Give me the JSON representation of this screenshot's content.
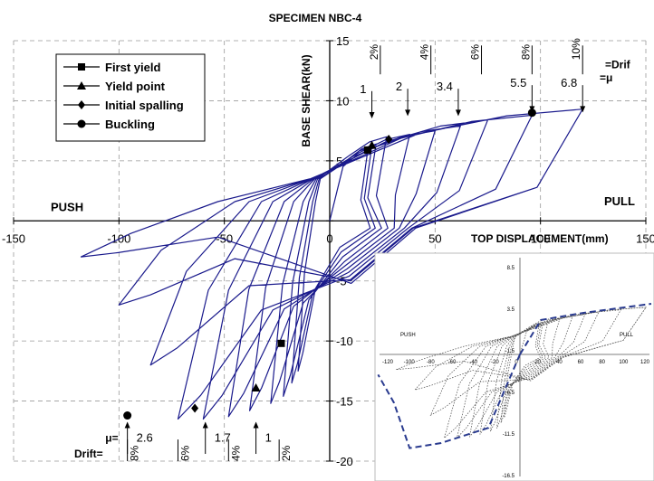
{
  "chart_data": {
    "type": "line",
    "title": "SPECIMEN NBC-4",
    "xlabel": "TOP DISPLACEMENT(mm)",
    "ylabel": "BASE SHEAR(kN)",
    "xlim": [
      -150,
      150
    ],
    "ylim": [
      -20,
      15
    ],
    "xticks": [
      -150,
      -100,
      -50,
      0,
      50,
      100,
      150
    ],
    "yticks": [
      -20,
      -15,
      -10,
      -5,
      0,
      5,
      10,
      15
    ],
    "xtick_labels": [
      "-150",
      "-100",
      "-50",
      "0",
      "50",
      "100",
      "150"
    ],
    "ytick_labels": [
      "-20",
      "-15",
      "-10",
      "-5",
      "0",
      "5",
      "10",
      "15"
    ],
    "grid": true,
    "legend_position": "top-left",
    "curve_color": "#1a1a8c",
    "side_labels": {
      "push": "PUSH",
      "pull": "PULL"
    },
    "legend": [
      {
        "label": "First yield",
        "marker": "square"
      },
      {
        "label": "Yield point",
        "marker": "triangle"
      },
      {
        "label": "Initial spalling",
        "marker": "diamond"
      },
      {
        "label": "Buckling",
        "marker": "circle"
      }
    ],
    "series": [
      {
        "name": "Hysteresis loops",
        "peaks_pos": [
          [
            18,
            5.8
          ],
          [
            20,
            6.2
          ],
          [
            22,
            6.4
          ],
          [
            27,
            7.0
          ],
          [
            38,
            7.2
          ],
          [
            50,
            7.5
          ],
          [
            62,
            7.9
          ],
          [
            75,
            8.4
          ],
          [
            96,
            8.8
          ],
          [
            120,
            9.3
          ]
        ],
        "peaks_neg": [
          [
            -15,
            -12.5
          ],
          [
            -18,
            -13.5
          ],
          [
            -22,
            -14.6
          ],
          [
            -28,
            -15.2
          ],
          [
            -38,
            -15.8
          ],
          [
            -48,
            -16.3
          ],
          [
            -60,
            -16.5
          ],
          [
            -72,
            -16.5
          ],
          [
            -85,
            -12.0
          ],
          [
            -100,
            -7.0
          ],
          [
            -118,
            -3.0
          ]
        ],
        "residual": [
          3.2,
          3.6,
          4.1,
          4.6,
          5.1,
          5.5,
          5.9,
          6.2,
          6.5,
          6.6,
          6.8
        ],
        "pinch": [
          -2.2,
          -2.6,
          -3.0,
          -3.4,
          -3.7,
          -4.0,
          -4.3,
          -4.6,
          -4.9,
          -5.0,
          -5.2
        ]
      }
    ],
    "events": {
      "first_yield": [
        {
          "x": 18,
          "y": 5.9
        },
        {
          "x": -23,
          "y": -10.2
        }
      ],
      "yield_point": [
        {
          "x": 20,
          "y": 6.3
        },
        {
          "x": -35,
          "y": -13.9
        }
      ],
      "initial_spalling": [
        {
          "x": 28,
          "y": 6.8
        },
        {
          "x": -64,
          "y": -15.6
        }
      ],
      "buckling": [
        {
          "x": 96,
          "y": 9.0
        },
        {
          "x": -96,
          "y": -16.2
        }
      ]
    },
    "ductility": {
      "marker": "=μ",
      "bottom_label": "μ=",
      "top": [
        {
          "x": 20,
          "label": "1"
        },
        {
          "x": 37,
          "label": "2"
        },
        {
          "x": 61,
          "label": "3.4"
        },
        {
          "x": 96,
          "label": "5.5"
        },
        {
          "x": 120,
          "label": "6.8"
        }
      ],
      "bottom": [
        {
          "x": -96,
          "label": "2.6"
        },
        {
          "x": -59,
          "label": "1.7"
        },
        {
          "x": -35,
          "label": "1"
        }
      ]
    },
    "drift": {
      "marker": "=Drif",
      "bottom_label": "Drift=",
      "top": [
        {
          "x": 24,
          "label": "2%"
        },
        {
          "x": 48,
          "label": "4%"
        },
        {
          "x": 72,
          "label": "6%"
        },
        {
          "x": 96,
          "label": "8%"
        },
        {
          "x": 120,
          "label": "10%"
        }
      ],
      "bottom": [
        {
          "x": -96,
          "label": "8%"
        },
        {
          "x": -72,
          "label": "6%"
        },
        {
          "x": -48,
          "label": "4%"
        },
        {
          "x": -24,
          "label": "2%"
        }
      ]
    },
    "inset": {
      "xtick_labels": [
        "-120",
        "-100",
        "-80",
        "-60",
        "-40",
        "-20",
        "0",
        "20",
        "40",
        "60",
        "80",
        "100",
        "120"
      ],
      "ytick_labels": [
        "8.5",
        "3.5",
        "-1.5",
        "-6.5",
        "-11.5",
        "-16.5"
      ],
      "push_label": "PUSH",
      "pull_label": "PULL"
    }
  }
}
